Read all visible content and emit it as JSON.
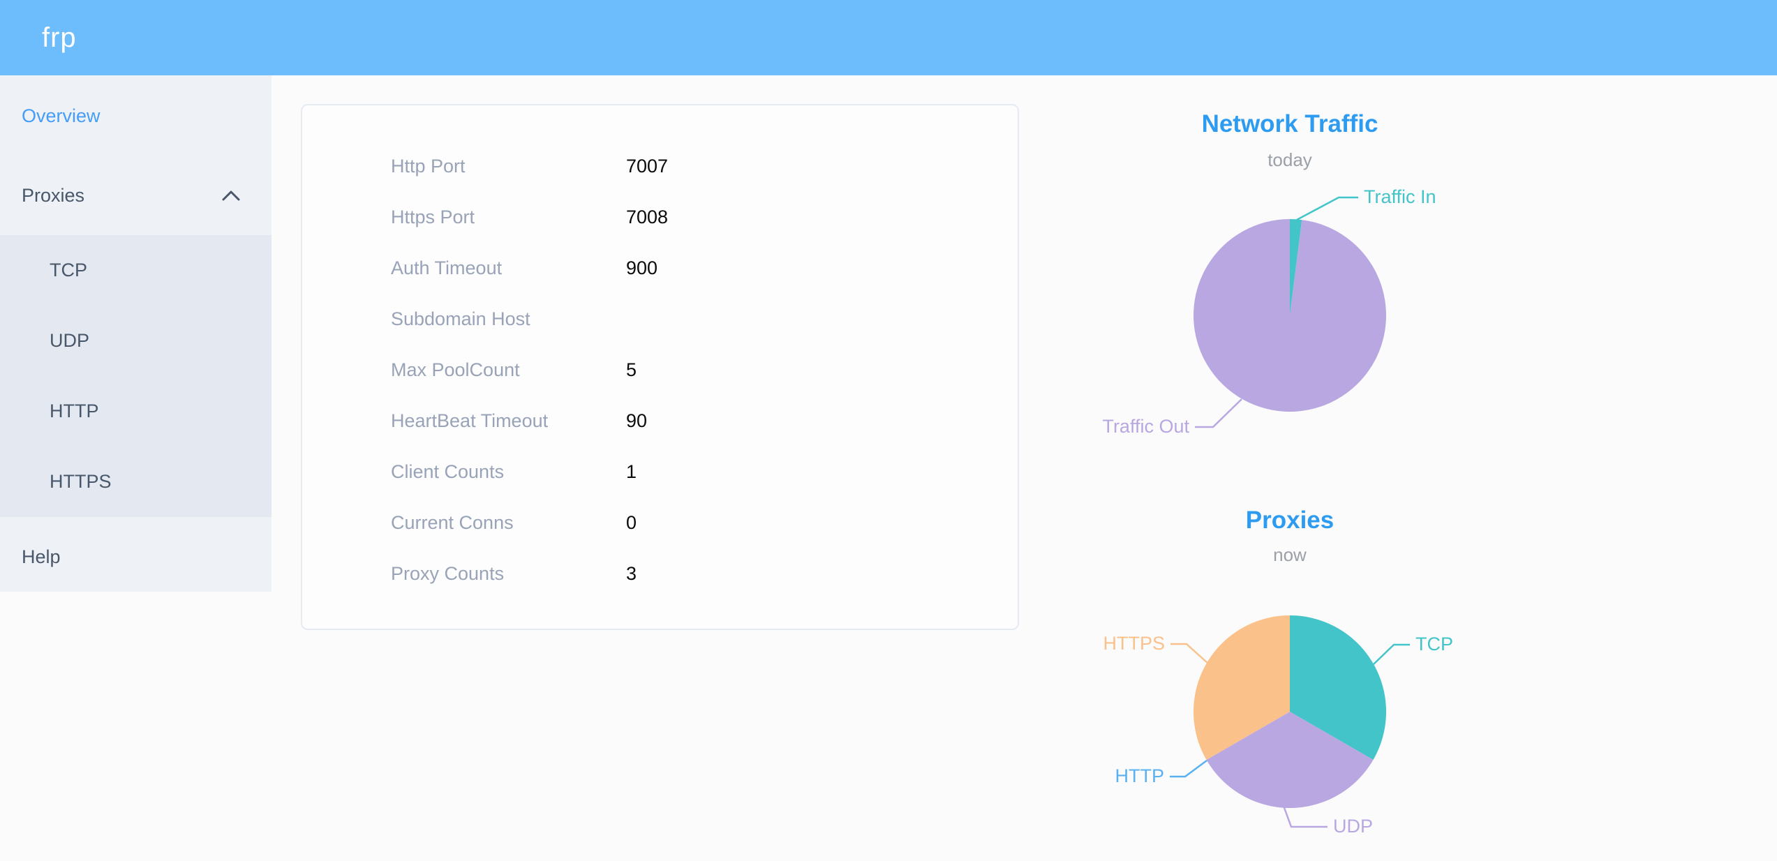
{
  "header": {
    "logo_text": "frp"
  },
  "sidebar": {
    "items": [
      {
        "label": "Overview",
        "active": true
      },
      {
        "label": "Proxies",
        "expanded": true,
        "children": [
          "TCP",
          "UDP",
          "HTTP",
          "HTTPS"
        ]
      },
      {
        "label": "Help"
      }
    ]
  },
  "server_info": {
    "rows": [
      {
        "label": "Http Port",
        "value": "7007"
      },
      {
        "label": "Https Port",
        "value": "7008"
      },
      {
        "label": "Auth Timeout",
        "value": "900"
      },
      {
        "label": "Subdomain Host",
        "value": ""
      },
      {
        "label": "Max PoolCount",
        "value": "5"
      },
      {
        "label": "HeartBeat Timeout",
        "value": "90"
      },
      {
        "label": "Client Counts",
        "value": "1"
      },
      {
        "label": "Current Conns",
        "value": "0"
      },
      {
        "label": "Proxy Counts",
        "value": "3"
      }
    ]
  },
  "chart_data": [
    {
      "type": "pie",
      "title": "Network Traffic",
      "subtitle": "today",
      "series": [
        {
          "name": "Traffic In",
          "value": 2,
          "color": "#43c4c9"
        },
        {
          "name": "Traffic Out",
          "value": 98,
          "color": "#b8a7e1"
        }
      ],
      "value_unit": "percent_of_total_estimated",
      "legend_position": "callout-labels",
      "start_angle_deg": 0,
      "clockwise": true
    },
    {
      "type": "pie",
      "title": "Proxies",
      "subtitle": "now",
      "series": [
        {
          "name": "TCP",
          "value": 1,
          "color": "#43c4c9"
        },
        {
          "name": "UDP",
          "value": 1,
          "color": "#b8a7e1"
        },
        {
          "name": "HTTP",
          "value": 0,
          "color": "#5ab1ef"
        },
        {
          "name": "HTTPS",
          "value": 1,
          "color": "#fac28a"
        }
      ],
      "value_unit": "proxy_count",
      "legend_position": "callout-labels",
      "start_angle_deg": 0,
      "clockwise": true
    }
  ],
  "colors": {
    "header_bg": "#6dbdfc",
    "sidebar_bg": "#eef1f6",
    "submenu_bg": "#e3e8f1",
    "sidebar_text": "#48576a",
    "active_item_blue": "#459df8",
    "chart_title_blue": "#2d9cf0",
    "subtitle_gray": "#9aa0a6",
    "info_label_gray": "#99a3b7",
    "info_value": "#0b0b0b",
    "card_border": "#e6eaf5",
    "teal": "#43c4c9",
    "purple": "#b8a7e1",
    "orange": "#fac28a",
    "http_blue": "#5ab1ef"
  }
}
